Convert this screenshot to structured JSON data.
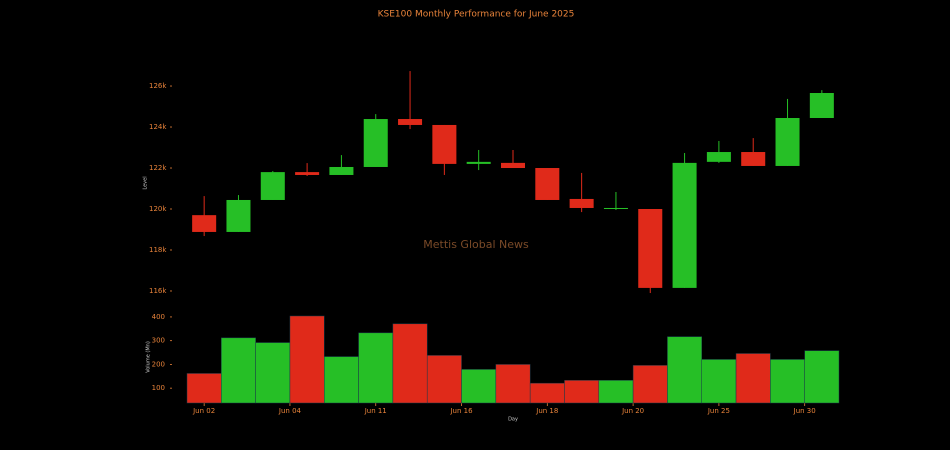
{
  "chart_data": {
    "type": "candlestick",
    "title": "KSE100 Monthly Performance for June 2025",
    "watermark": "Mettis Global News",
    "x_label": "Day",
    "y_label": "Level",
    "y2_label": "Volume (Mn)",
    "x": [
      0,
      1,
      2,
      3,
      4,
      5,
      6,
      7,
      8,
      9,
      10,
      11,
      12,
      13,
      14,
      15,
      16,
      17,
      18
    ],
    "xlim": [
      -0.5,
      18.5
    ],
    "xticks": [
      {
        "value": 0,
        "label": "Jun 02"
      },
      {
        "value": 2.5,
        "label": "Jun 04"
      },
      {
        "value": 5,
        "label": "Jun 11"
      },
      {
        "value": 7.5,
        "label": "Jun 16"
      },
      {
        "value": 10,
        "label": "Jun 18"
      },
      {
        "value": 12.5,
        "label": "Jun 20"
      },
      {
        "value": 15,
        "label": "Jun 25"
      },
      {
        "value": 17.5,
        "label": "Jun 30"
      }
    ],
    "open": [
      119700,
      118880,
      120440,
      121800,
      121660,
      122050,
      124390,
      124100,
      122200,
      122250,
      122000,
      120490,
      120000,
      120000,
      116150,
      122300,
      122780,
      122100,
      124440
    ],
    "high": [
      120630,
      120680,
      121850,
      122240,
      122630,
      124630,
      126730,
      124100,
      122880,
      122880,
      122000,
      121760,
      120830,
      120000,
      122730,
      123320,
      123460,
      125370,
      125800
    ],
    "low": [
      118680,
      118880,
      120440,
      121610,
      121660,
      122050,
      123900,
      121660,
      121900,
      122000,
      120440,
      119850,
      119950,
      115900,
      116150,
      122250,
      122100,
      122100,
      124440
    ],
    "close": [
      118880,
      120440,
      121800,
      121660,
      122050,
      124390,
      124100,
      122200,
      122300,
      122000,
      120440,
      120050,
      120050,
      116150,
      122250,
      122780,
      122100,
      124440,
      125660
    ],
    "volume": [
      162,
      312,
      292,
      404,
      233,
      333,
      371,
      238,
      179,
      200,
      121,
      133,
      133,
      196,
      317,
      221,
      246,
      221,
      258
    ],
    "ylim": [
      115560,
      127270
    ],
    "yticks": [
      {
        "value": 116000,
        "label": "116k"
      },
      {
        "value": 118000,
        "label": "118k"
      },
      {
        "value": 120000,
        "label": "120k"
      },
      {
        "value": 122000,
        "label": "122k"
      },
      {
        "value": 124000,
        "label": "124k"
      },
      {
        "value": 126000,
        "label": "126k"
      }
    ],
    "y2lim": [
      37.5,
      425
    ],
    "y2ticks": [
      100,
      200,
      300,
      400
    ],
    "up_color": "#26bf26",
    "down_color": "#e02a1a",
    "text_color": "#e8833a",
    "watermark_color": "#7a4a28"
  }
}
